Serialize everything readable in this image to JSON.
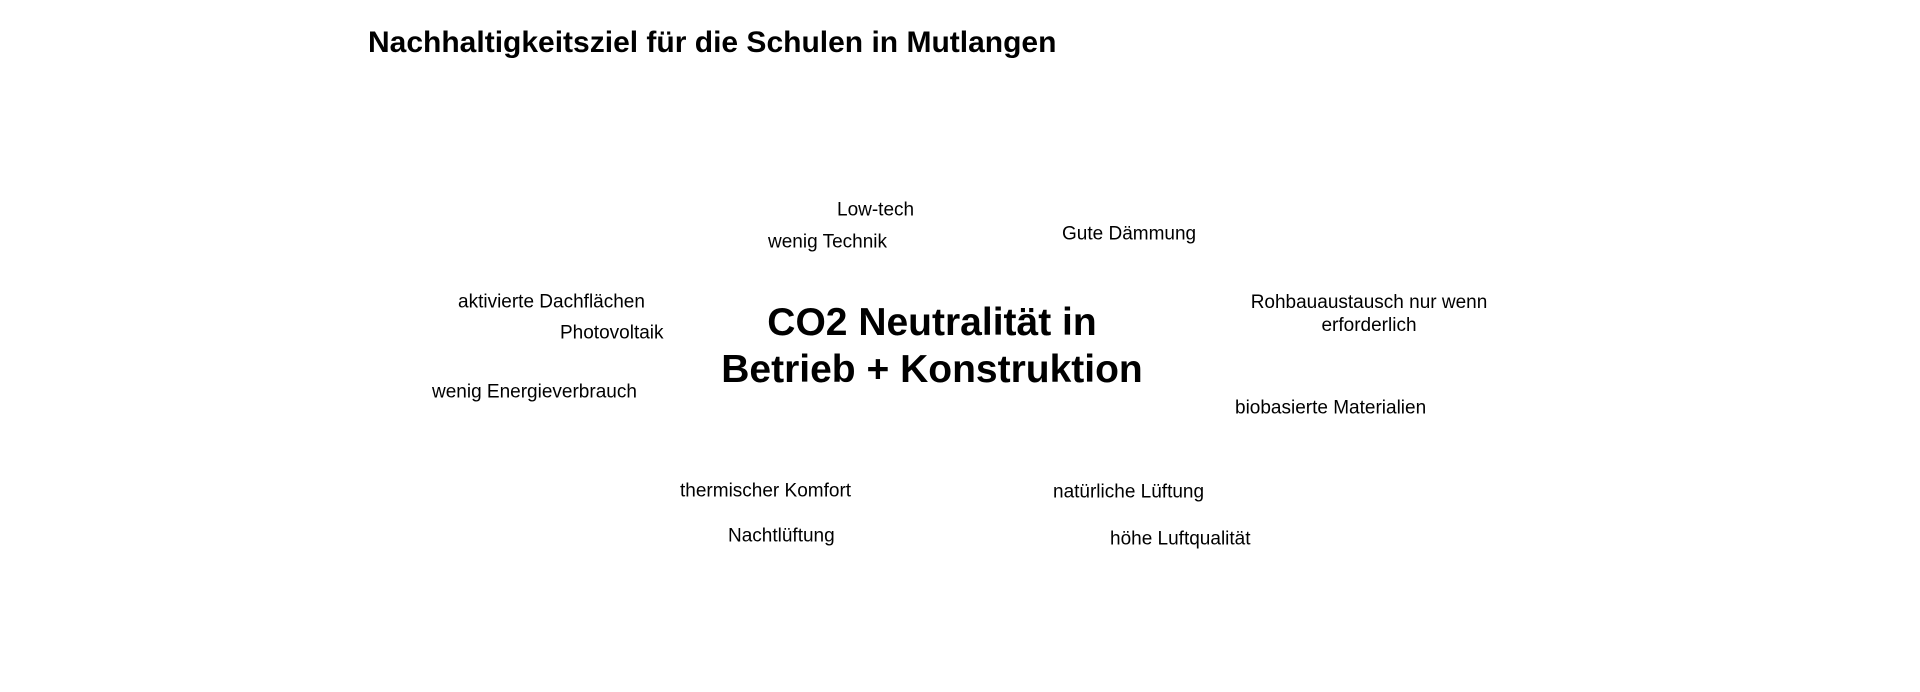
{
  "title": "Nachhaltigkeitsziel für die Schulen in Mutlangen",
  "center": {
    "line1": "CO2 Neutralität in",
    "line2": "Betrieb + Konstruktion"
  },
  "keywords": {
    "low_tech": "Low-tech",
    "wenig_technik": "wenig Technik",
    "gute_daemmung": "Gute Dämmung",
    "aktivierte_dachflaechen": "aktivierte Dachflächen",
    "photovoltaik": "Photovoltaik",
    "rohbau_line1": "Rohbauaustausch nur wenn",
    "rohbau_line2": "erforderlich",
    "wenig_energieverbrauch": "wenig Energieverbrauch",
    "biobasierte_materialien": "biobasierte Materialien",
    "thermischer_komfort": "thermischer Komfort",
    "natuerliche_lueftung": "natürliche Lüftung",
    "nachtlueftung": "Nachtlüftung",
    "hoehe_luftqualitaet": "höhe Luftqualität"
  }
}
